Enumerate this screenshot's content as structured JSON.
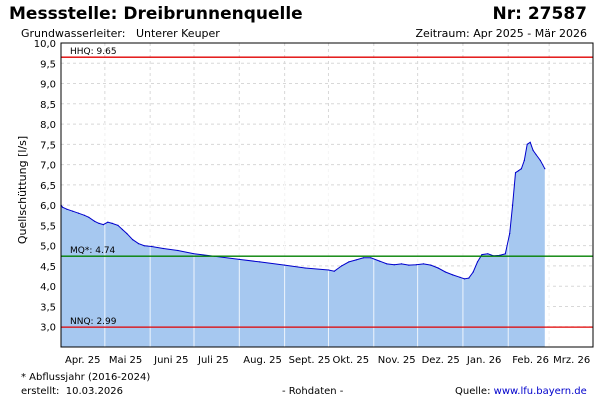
{
  "header": {
    "title": "Messstelle: Dreibrunnenquelle",
    "nr": "Nr: 27587",
    "aquifer_label": "Grundwasserleiter:",
    "aquifer_value": "Unterer Keuper",
    "period": "Zeitraum: Apr 2025 - Mär 2026"
  },
  "footer": {
    "note": "* Abflussjahr (2016-2024)",
    "created_label": "erstellt:",
    "created_date": "10.03.2026",
    "data_status": "- Rohdaten -",
    "source_label": "Quelle:",
    "source_link": "www.lfu.bayern.de"
  },
  "colors": {
    "fill": "#a6c8f0",
    "line": "#0000cc",
    "hhq": "#e00000",
    "nnq": "#e00000",
    "mq": "#008000",
    "grid": "#d8d8d8"
  },
  "chart_data": {
    "type": "area",
    "ylabel": "Quellschüttung [l/s]",
    "ylim": [
      2.5,
      10.0
    ],
    "yticks": [
      "10,0",
      "9,5",
      "9,0",
      "8,5",
      "8,0",
      "7,5",
      "7,0",
      "6,5",
      "6,0",
      "5,5",
      "5,0",
      "4,5",
      "4,0",
      "3,5",
      "3,0"
    ],
    "ytick_values": [
      10.0,
      9.5,
      9.0,
      8.5,
      8.0,
      7.5,
      7.0,
      6.5,
      6.0,
      5.5,
      5.0,
      4.5,
      4.0,
      3.5,
      3.0
    ],
    "xlim": [
      "2025-04-01",
      "2026-03-31"
    ],
    "month_labels": [
      "Apr. 25",
      "Mai 25",
      "Juni 25",
      "Juli 25",
      "Aug. 25",
      "Sept. 25",
      "Okt. 25",
      "Nov. 25",
      "Dez. 25",
      "Jan. 26",
      "Feb. 26",
      "Mrz. 26"
    ],
    "month_starts": [
      "2025-04-01",
      "2025-05-01",
      "2025-06-01",
      "2025-07-01",
      "2025-08-01",
      "2025-09-01",
      "2025-10-01",
      "2025-11-01",
      "2025-12-01",
      "2026-01-01",
      "2026-02-01",
      "2026-03-01"
    ],
    "reference_lines": [
      {
        "label": "HHQ: 9.65",
        "value": 9.65,
        "color": "#e00000"
      },
      {
        "label": "MQ*: 4.74",
        "value": 4.74,
        "color": "#008000"
      },
      {
        "label": "NNQ: 2.99",
        "value": 2.99,
        "color": "#e00000"
      }
    ],
    "series": [
      {
        "points": [
          [
            "2025-04-01",
            6.0
          ],
          [
            "2025-04-02",
            5.95
          ],
          [
            "2025-04-05",
            5.9
          ],
          [
            "2025-04-09",
            5.85
          ],
          [
            "2025-04-13",
            5.8
          ],
          [
            "2025-04-17",
            5.75
          ],
          [
            "2025-04-20",
            5.7
          ],
          [
            "2025-04-24",
            5.6
          ],
          [
            "2025-04-27",
            5.55
          ],
          [
            "2025-04-30",
            5.52
          ],
          [
            "2025-05-03",
            5.58
          ],
          [
            "2025-05-06",
            5.55
          ],
          [
            "2025-05-10",
            5.5
          ],
          [
            "2025-05-13",
            5.4
          ],
          [
            "2025-05-16",
            5.3
          ],
          [
            "2025-05-20",
            5.15
          ],
          [
            "2025-05-24",
            5.05
          ],
          [
            "2025-05-28",
            5.0
          ],
          [
            "2025-06-02",
            4.98
          ],
          [
            "2025-06-10",
            4.93
          ],
          [
            "2025-06-20",
            4.88
          ],
          [
            "2025-07-01",
            4.8
          ],
          [
            "2025-07-15",
            4.74
          ],
          [
            "2025-08-01",
            4.66
          ],
          [
            "2025-08-15",
            4.6
          ],
          [
            "2025-09-01",
            4.52
          ],
          [
            "2025-09-15",
            4.45
          ],
          [
            "2025-10-01",
            4.4
          ],
          [
            "2025-10-05",
            4.37
          ],
          [
            "2025-10-10",
            4.5
          ],
          [
            "2025-10-15",
            4.6
          ],
          [
            "2025-10-20",
            4.65
          ],
          [
            "2025-10-25",
            4.7
          ],
          [
            "2025-10-30",
            4.7
          ],
          [
            "2025-11-05",
            4.62
          ],
          [
            "2025-11-10",
            4.55
          ],
          [
            "2025-11-15",
            4.53
          ],
          [
            "2025-11-20",
            4.55
          ],
          [
            "2025-11-25",
            4.52
          ],
          [
            "2025-11-30",
            4.53
          ],
          [
            "2025-12-05",
            4.55
          ],
          [
            "2025-12-10",
            4.52
          ],
          [
            "2025-12-15",
            4.45
          ],
          [
            "2025-12-20",
            4.35
          ],
          [
            "2025-12-25",
            4.28
          ],
          [
            "2025-12-30",
            4.22
          ],
          [
            "2026-01-02",
            4.18
          ],
          [
            "2026-01-05",
            4.2
          ],
          [
            "2026-01-08",
            4.35
          ],
          [
            "2026-01-11",
            4.6
          ],
          [
            "2026-01-14",
            4.78
          ],
          [
            "2026-01-18",
            4.8
          ],
          [
            "2026-01-22",
            4.75
          ],
          [
            "2026-01-26",
            4.76
          ],
          [
            "2026-01-30",
            4.8
          ],
          [
            "2026-02-02",
            5.3
          ],
          [
            "2026-02-04",
            6.0
          ],
          [
            "2026-02-06",
            6.8
          ],
          [
            "2026-02-08",
            6.85
          ],
          [
            "2026-02-10",
            6.9
          ],
          [
            "2026-02-12",
            7.1
          ],
          [
            "2026-02-14",
            7.5
          ],
          [
            "2026-02-16",
            7.55
          ],
          [
            "2026-02-18",
            7.35
          ],
          [
            "2026-02-20",
            7.25
          ],
          [
            "2026-02-23",
            7.1
          ],
          [
            "2026-02-26",
            6.9
          ]
        ]
      }
    ]
  }
}
